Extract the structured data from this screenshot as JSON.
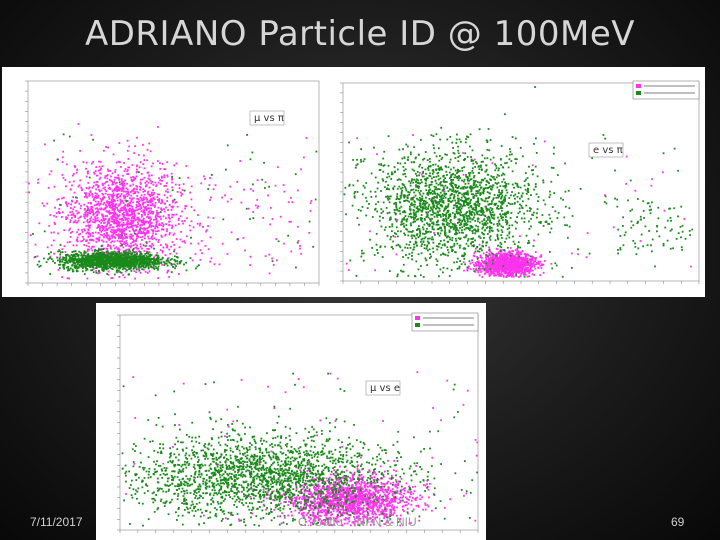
{
  "slide": {
    "title": "ADRIANO Particle ID @ 100MeV",
    "date": "7/11/2017",
    "author": "C. Gatto - INFN & NIU",
    "page_number": "69"
  },
  "chart_data": [
    {
      "type": "scatter",
      "title": "",
      "annotation": "µ vs π",
      "xlabel": "",
      "ylabel": "",
      "xlim": [
        0,
        1000
      ],
      "ylim": [
        0,
        1000
      ],
      "series": [
        {
          "color": "#ff33ee",
          "points": [
            [
              120,
              350
            ],
            [
              230,
              300
            ],
            [
              350,
              420
            ],
            [
              300,
              260
            ],
            [
              210,
              180
            ]
          ],
          "cluster": {
            "cx": 320,
            "cy": 330,
            "sx": 95,
            "sy": 130,
            "n": 1600
          },
          "tail": {
            "x_range": [
              420,
              980
            ],
            "y_range": [
              80,
              520
            ],
            "n": 90
          }
        },
        {
          "color": "#1a8a1a",
          "points": [
            [
              200,
              110
            ],
            [
              300,
              120
            ],
            [
              250,
              95
            ],
            [
              330,
              115
            ]
          ],
          "cluster": {
            "cx": 290,
            "cy": 110,
            "sx": 90,
            "sy": 22,
            "n": 1400
          }
        }
      ]
    },
    {
      "type": "scatter",
      "title": "",
      "annotation": "e vs π",
      "xlabel": "",
      "ylabel": "",
      "xlim": [
        0,
        1000
      ],
      "ylim": [
        0,
        1000
      ],
      "legend_position": "top-right",
      "series": [
        {
          "color": "#ff33ee",
          "points": [
            [
              440,
              90
            ],
            [
              460,
              80
            ],
            [
              480,
              100
            ]
          ],
          "cluster": {
            "cx": 460,
            "cy": 85,
            "sx": 40,
            "sy": 28,
            "n": 1200
          }
        },
        {
          "color": "#1a8a1a",
          "points": [
            [
              260,
              400
            ],
            [
              320,
              380
            ],
            [
              200,
              300
            ]
          ],
          "cluster": {
            "cx": 310,
            "cy": 380,
            "sx": 120,
            "sy": 140,
            "n": 1900
          },
          "tail": {
            "x_range": [
              760,
              990
            ],
            "y_range": [
              120,
              420
            ],
            "n": 80
          }
        }
      ]
    },
    {
      "type": "scatter",
      "title": "",
      "annotation": "µ vs e",
      "xlabel": "",
      "ylabel": "",
      "xlim": [
        0,
        1000
      ],
      "ylim": [
        0,
        1000
      ],
      "legend_position": "top-right",
      "series": [
        {
          "color": "#ff33ee",
          "points": [
            [
              640,
              140
            ],
            [
              600,
              120
            ],
            [
              700,
              160
            ]
          ],
          "cluster": {
            "cx": 640,
            "cy": 140,
            "sx": 90,
            "sy": 55,
            "n": 1500
          }
        },
        {
          "color": "#1a8a1a",
          "points": [
            [
              300,
              260
            ],
            [
              500,
              240
            ],
            [
              400,
              300
            ]
          ],
          "cluster": {
            "cx": 390,
            "cy": 250,
            "sx": 190,
            "sy": 95,
            "n": 2000
          }
        }
      ]
    }
  ]
}
